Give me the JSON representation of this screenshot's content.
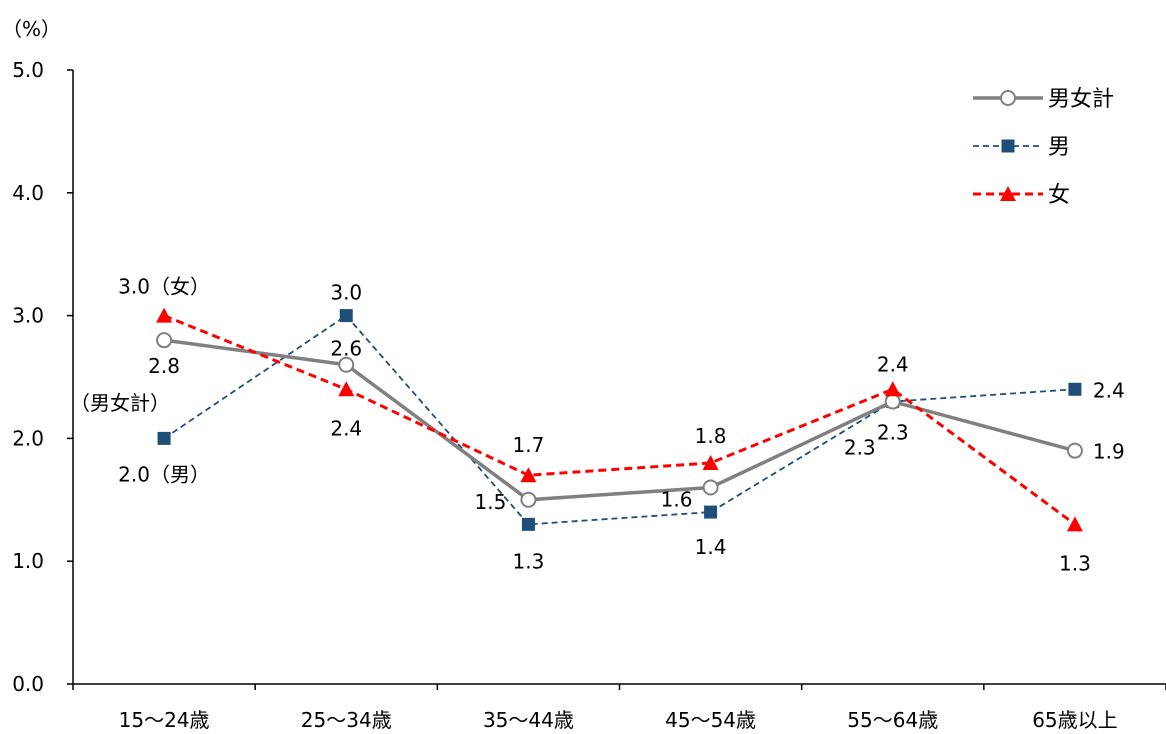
{
  "chart_data": {
    "type": "line",
    "unit_label": "（%）",
    "categories": [
      "15～24歳",
      "25～34歳",
      "35～44歳",
      "45～54歳",
      "55～64歳",
      "65歳以上"
    ],
    "ylim": [
      0,
      5
    ],
    "yticks": [
      "0.0",
      "1.0",
      "2.0",
      "3.0",
      "4.0",
      "5.0"
    ],
    "grid": false,
    "legend_position": "top-right",
    "series": [
      {
        "name": "男女計",
        "values": [
          2.8,
          2.6,
          1.5,
          1.6,
          2.3,
          1.9
        ],
        "labels": [
          "2.8",
          "2.6",
          "1.5",
          "1.6",
          "2.3",
          "1.9"
        ],
        "color": "#808080",
        "marker": "circle-open",
        "dash": "solid"
      },
      {
        "name": "男",
        "values": [
          2.0,
          3.0,
          1.3,
          1.4,
          2.3,
          2.4
        ],
        "labels": [
          "2.0（男）",
          "3.0",
          "1.3",
          "1.4",
          "2.3",
          "2.4"
        ],
        "color": "#1f4e79",
        "marker": "square",
        "dash": "dashed"
      },
      {
        "name": "女",
        "values": [
          3.0,
          2.4,
          1.7,
          1.8,
          2.4,
          1.3
        ],
        "labels": [
          "3.0（女）",
          "2.4",
          "1.7",
          "1.8",
          "2.4",
          "1.3"
        ],
        "color": "#ff0000",
        "marker": "triangle",
        "dash": "dashed"
      }
    ],
    "annotations": [
      "（男女計）"
    ]
  }
}
